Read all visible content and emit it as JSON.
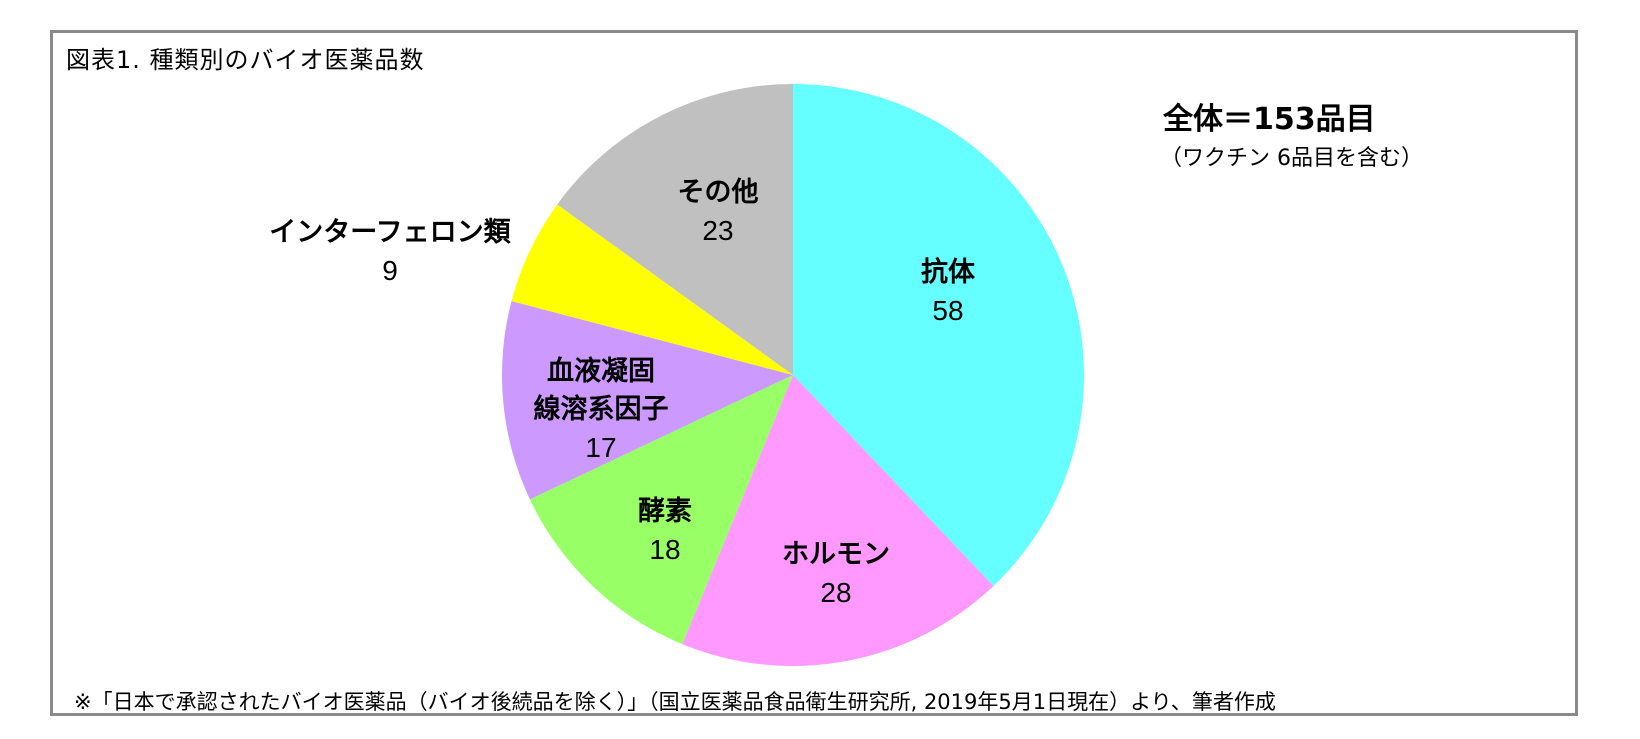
{
  "header": {
    "title": "図表1. 種類別のバイオ医薬品数"
  },
  "summary": {
    "total": "全体＝153品目",
    "note": "（ワクチン 6品目を含む）"
  },
  "footnote": "※「日本で承認されたバイオ医薬品（バイオ後続品を除く）」（国立医薬品食品衛生研究所, 2019年5月1日現在）より、筆者作成",
  "chart_data": {
    "type": "pie",
    "title": "図表1. 種類別のバイオ医薬品数",
    "total": 153,
    "start_angle_deg": 0,
    "direction": "clockwise",
    "categories": [
      "抗体",
      "ホルモン",
      "酵素",
      "血液凝固線溶系因子",
      "インターフェロン類",
      "その他"
    ],
    "values": [
      58,
      28,
      18,
      17,
      9,
      23
    ],
    "colors": [
      "#66ffff",
      "#ff99ff",
      "#99ff66",
      "#cc99ff",
      "#ffff00",
      "#c0c0c0"
    ],
    "annotations": [
      "全体＝153品目",
      "（ワクチン 6品目を含む）"
    ],
    "legend": "none (data labels on slices)"
  },
  "labels": [
    {
      "name": "抗体",
      "lines": [
        "抗体"
      ],
      "value": "58"
    },
    {
      "name": "ホルモン",
      "lines": [
        "ホルモン"
      ],
      "value": "28"
    },
    {
      "name": "酵素",
      "lines": [
        "酵素"
      ],
      "value": "18"
    },
    {
      "name": "血液凝固線溶系因子",
      "lines": [
        "血液凝固",
        "線溶系因子"
      ],
      "value": "17"
    },
    {
      "name": "インターフェロン類",
      "lines": [
        "インターフェロン類"
      ],
      "value": "9"
    },
    {
      "name": "その他",
      "lines": [
        "その他"
      ],
      "value": "23"
    }
  ]
}
